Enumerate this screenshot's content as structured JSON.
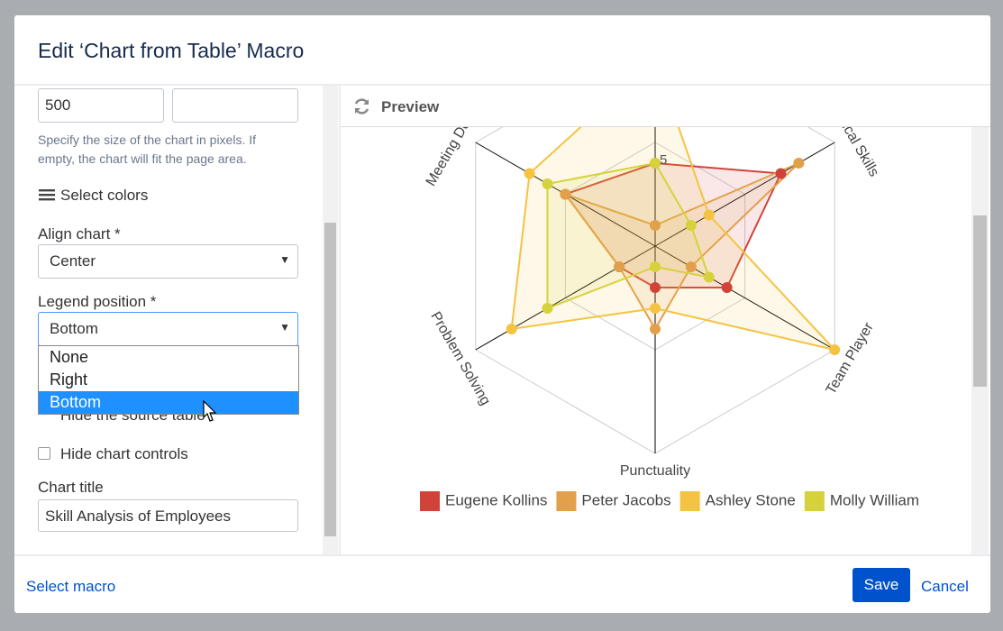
{
  "dialog": {
    "title": "Edit ‘Chart from Table’ Macro",
    "form": {
      "width_value": "500",
      "size_help": "Specify the size of the chart in pixels. If empty, the chart will fit the page area.",
      "select_colors": "Select colors",
      "align_label": "Align chart *",
      "align_value": "Center",
      "legend_label": "Legend position *",
      "legend_value": "Bottom",
      "legend_options": [
        "None",
        "Right",
        "Bottom"
      ],
      "hide_source": "Hide the source table",
      "hide_controls": "Hide chart controls",
      "chart_title_label": "Chart title",
      "chart_title_value": "Skill Analysis of Employees"
    },
    "preview": "Preview",
    "footer": {
      "select_macro": "Select macro",
      "save": "Save",
      "cancel": "Cancel"
    }
  },
  "chart_data": {
    "type": "radar",
    "categories": [
      null,
      "Technical Skills",
      "Team Player",
      "Punctuality",
      "Problem Solving",
      "Meeting Deadlines"
    ],
    "series": [
      {
        "name": "Eugene Kollins",
        "color": "#d1433a",
        "values": [
          4,
          7,
          4,
          2,
          2,
          5
        ]
      },
      {
        "name": "Peter Jacobs",
        "color": "#e2a04a",
        "values": [
          1,
          8,
          2,
          4,
          2,
          5
        ]
      },
      {
        "name": "Ashley Stone",
        "color": "#f5c342",
        "values": [
          9,
          3,
          10,
          3,
          8,
          7
        ]
      },
      {
        "name": "Molly William",
        "color": "#d6d23c",
        "values": [
          4,
          2,
          3,
          1,
          6,
          6
        ]
      }
    ],
    "rlim": [
      0,
      10
    ],
    "rticks": [
      5
    ],
    "grid": true,
    "legend": "bottom"
  }
}
